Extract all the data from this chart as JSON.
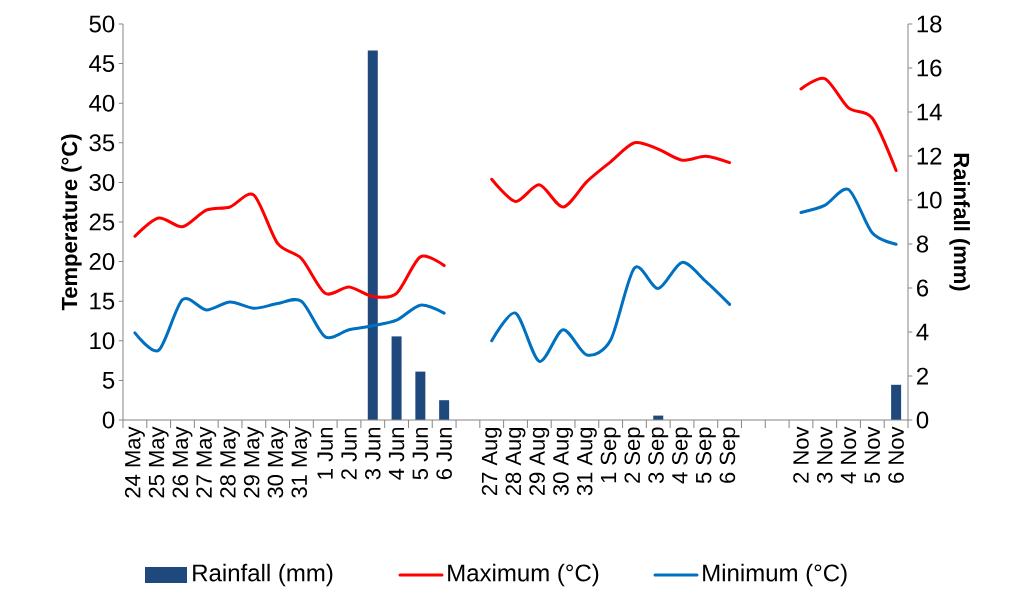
{
  "chart_data": {
    "type": "line",
    "categories": [
      "24 May",
      "25 May",
      "26 May",
      "27 May",
      "28 May",
      "29 May",
      "30 May",
      "31 May",
      "1 Jun",
      "2 Jun",
      "3 Jun",
      "4 Jun",
      "5 Jun",
      "6 Jun",
      null,
      "27 Aug",
      "28 Aug",
      "29 Aug",
      "30 Aug",
      "31 Aug",
      "1 Sep",
      "2 Sep",
      "3 Sep",
      "4 Sep",
      "5 Sep",
      "6 Sep",
      null,
      null,
      "2 Nov",
      "3 Nov",
      "4 Nov",
      "5 Nov",
      "6 Nov"
    ],
    "series": [
      {
        "name": "Rainfall (mm)",
        "type": "bar",
        "axis": "y2",
        "color": "#1f497d",
        "values": [
          null,
          null,
          null,
          null,
          null,
          null,
          null,
          null,
          null,
          null,
          16.8,
          3.8,
          2.2,
          0.9,
          null,
          null,
          null,
          null,
          null,
          null,
          null,
          null,
          0.2,
          null,
          null,
          null,
          null,
          null,
          null,
          null,
          null,
          null,
          1.6
        ]
      },
      {
        "name": "Maximum (°C)",
        "color": "#ff0000",
        "values": [
          23.2,
          25.5,
          24.4,
          26.5,
          26.9,
          28.4,
          22.3,
          20.4,
          16.0,
          16.8,
          15.6,
          16.0,
          20.6,
          19.5,
          null,
          30.4,
          27.6,
          29.7,
          26.9,
          30.1,
          32.6,
          35.0,
          34.2,
          32.8,
          33.3,
          32.5,
          null,
          null,
          41.8,
          43.1,
          39.4,
          38.1,
          31.5
        ]
      },
      {
        "name": "Minimum (°C)",
        "color": "#0070c0",
        "values": [
          11.0,
          8.8,
          15.2,
          13.9,
          14.9,
          14.1,
          14.7,
          15.0,
          10.5,
          11.4,
          11.9,
          12.6,
          14.5,
          13.5,
          null,
          10.0,
          13.5,
          7.4,
          11.4,
          8.2,
          10.1,
          19.2,
          16.6,
          19.9,
          17.5,
          14.6,
          null,
          null,
          26.2,
          27.1,
          29.1,
          23.6,
          22.2
        ]
      }
    ],
    "ylabel": "Temperature (°C)",
    "y2label": "Rainfall (mm)",
    "ylim": [
      0,
      50
    ],
    "yticks": [
      0,
      5,
      10,
      15,
      20,
      25,
      30,
      35,
      40,
      45,
      50
    ],
    "y2lim": [
      0,
      18
    ],
    "y2ticks": [
      0,
      2,
      4,
      6,
      8,
      10,
      12,
      14,
      16,
      18
    ],
    "legend": "bottom"
  }
}
